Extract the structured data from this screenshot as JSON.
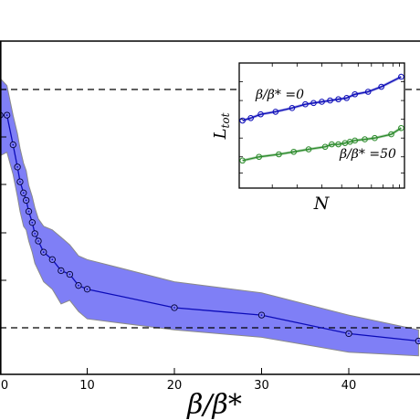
{
  "chart_data": [
    {
      "type": "area",
      "xlabel": "β/β*",
      "ylabel": "",
      "xlim": [
        0,
        48
      ],
      "x_ticks": [
        "0",
        "10",
        "20",
        "30",
        "40"
      ],
      "y_ticks": [],
      "grid": false,
      "colors": {
        "line": "#0b0bb8",
        "band": "#7f7ff6",
        "band_edge": "#8a8a8a",
        "reference": "#000000"
      },
      "reference_lines": [
        {
          "style": "dashed",
          "level": "upper"
        },
        {
          "style": "dashed",
          "level": "lower"
        }
      ],
      "series": [
        {
          "x": [
            0,
            0.8,
            1.5,
            2,
            2.3,
            2.7,
            3,
            3.3,
            3.7,
            4,
            4.4,
            5,
            6,
            7,
            8,
            9,
            10,
            20,
            30,
            40,
            48
          ],
          "y": [
            0.5,
            0.5,
            0.42,
            0.36,
            0.32,
            0.29,
            0.27,
            0.24,
            0.21,
            0.18,
            0.16,
            0.13,
            0.11,
            0.08,
            0.07,
            0.04,
            0.03,
            -0.02,
            -0.04,
            -0.09,
            -0.11
          ],
          "band_upper": [
            0.6,
            0.58,
            0.5,
            0.45,
            0.41,
            0.37,
            0.35,
            0.31,
            0.28,
            0.25,
            0.22,
            0.2,
            0.19,
            0.17,
            0.15,
            0.12,
            0.11,
            0.05,
            0.02,
            -0.04,
            -0.08
          ],
          "band_lower": [
            0.39,
            0.4,
            0.34,
            0.28,
            0.24,
            0.2,
            0.19,
            0.16,
            0.13,
            0.1,
            0.08,
            0.05,
            0.03,
            -0.01,
            0.0,
            -0.03,
            -0.05,
            -0.08,
            -0.1,
            -0.14,
            -0.15
          ]
        }
      ],
      "inset": {
        "type": "line",
        "xlabel": "N",
        "ylabel": "L_tot",
        "log_scale": true,
        "series": [
          {
            "label": "β/β* =0",
            "color": "#0b0bb8",
            "x": [
              0.02,
              0.07,
              0.13,
              0.22,
              0.32,
              0.4,
              0.45,
              0.5,
              0.55,
              0.6,
              0.65,
              0.7,
              0.78,
              0.86,
              0.98
            ],
            "y": [
              0.54,
              0.56,
              0.59,
              0.61,
              0.64,
              0.67,
              0.68,
              0.69,
              0.7,
              0.71,
              0.72,
              0.75,
              0.77,
              0.81,
              0.89
            ]
          },
          {
            "label": "β/β* =50",
            "color": "#2a8a2a",
            "x": [
              0.02,
              0.12,
              0.24,
              0.33,
              0.42,
              0.52,
              0.56,
              0.6,
              0.64,
              0.67,
              0.7,
              0.76,
              0.82,
              0.92,
              0.98
            ],
            "y": [
              0.22,
              0.25,
              0.27,
              0.29,
              0.31,
              0.33,
              0.35,
              0.35,
              0.36,
              0.37,
              0.38,
              0.39,
              0.4,
              0.43,
              0.48
            ]
          }
        ]
      }
    }
  ]
}
